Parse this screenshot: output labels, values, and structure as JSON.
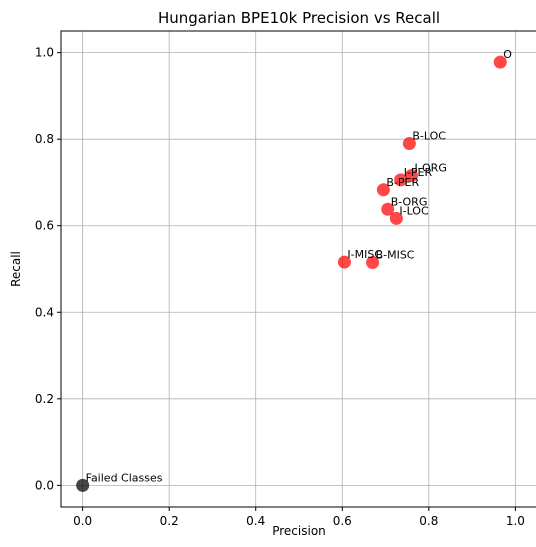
{
  "chart_data": {
    "type": "scatter",
    "title": "Hungarian BPE10k Precision vs Recall",
    "xlabel": "Precision",
    "ylabel": "Recall",
    "xlim": [
      -0.05,
      1.05
    ],
    "ylim": [
      -0.05,
      1.05
    ],
    "xticks": [
      0.0,
      0.2,
      0.4,
      0.6,
      0.8,
      1.0
    ],
    "yticks": [
      0.0,
      0.2,
      0.4,
      0.6,
      0.8,
      1.0
    ],
    "xtick_labels": [
      "0.0",
      "0.2",
      "0.4",
      "0.6",
      "0.8",
      "1.0"
    ],
    "ytick_labels": [
      "0.0",
      "0.2",
      "0.4",
      "0.6",
      "0.8",
      "1.0"
    ],
    "grid": true,
    "points": [
      {
        "label": "O",
        "x": 0.965,
        "y": 0.978,
        "color": "#ff0000"
      },
      {
        "label": "B-LOC",
        "x": 0.755,
        "y": 0.79,
        "color": "#ff0000"
      },
      {
        "label": "I-ORG",
        "x": 0.76,
        "y": 0.716,
        "color": "#ff0000"
      },
      {
        "label": "I-PER",
        "x": 0.735,
        "y": 0.706,
        "color": "#ff0000"
      },
      {
        "label": "B-PER",
        "x": 0.695,
        "y": 0.683,
        "color": "#ff0000"
      },
      {
        "label": "B-ORG",
        "x": 0.705,
        "y": 0.638,
        "color": "#ff0000"
      },
      {
        "label": "I-LOC",
        "x": 0.725,
        "y": 0.617,
        "color": "#ff0000"
      },
      {
        "label": "I-MISC",
        "x": 0.605,
        "y": 0.516,
        "color": "#ff0000"
      },
      {
        "label": "B-MISC",
        "x": 0.67,
        "y": 0.515,
        "color": "#ff0000"
      },
      {
        "label": "Failed Classes",
        "x": 0.0,
        "y": 0.0,
        "color": "#000000"
      }
    ]
  }
}
